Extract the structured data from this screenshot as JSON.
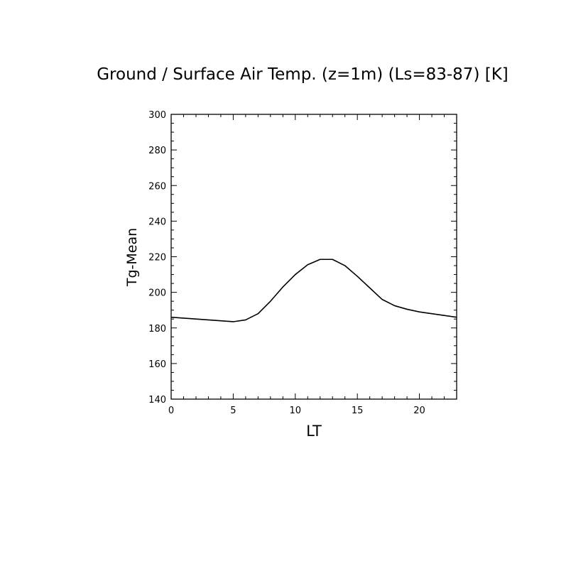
{
  "chart_data": {
    "type": "line",
    "title": "Ground / Surface Air Temp. (z=1m) (Ls=83-87) [K]",
    "xlabel": "LT",
    "ylabel": "Tg-Mean",
    "xlim": [
      0,
      23
    ],
    "ylim": [
      140,
      300
    ],
    "xticks": [
      0,
      5,
      10,
      15,
      20
    ],
    "yticks": [
      140,
      160,
      180,
      200,
      220,
      240,
      260,
      280,
      300
    ],
    "grid": false,
    "series": [
      {
        "x": [
          0,
          1,
          2,
          3,
          4,
          5,
          6,
          7,
          8,
          9,
          10,
          11,
          12,
          13,
          14,
          15,
          16,
          17,
          18,
          19,
          20,
          21,
          22,
          23
        ],
        "values": [
          186,
          185.5,
          185,
          184.5,
          184,
          183.5,
          184.5,
          188,
          195,
          203,
          210,
          215.5,
          218.5,
          218.5,
          215,
          209,
          202.5,
          196,
          192.5,
          190.5,
          189,
          188,
          187,
          186
        ]
      }
    ],
    "colors": {
      "line": "#000000",
      "axis": "#000000",
      "background": "#ffffff"
    }
  }
}
